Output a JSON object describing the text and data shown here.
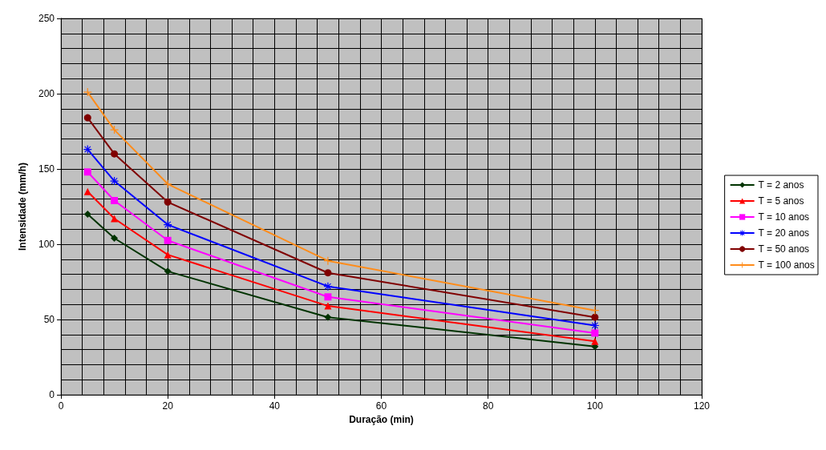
{
  "chart_data": {
    "type": "line",
    "xlabel": "Duração (min)",
    "ylabel": "Intensidade (mm/h)",
    "x": [
      5,
      10,
      20,
      50,
      100
    ],
    "xlim": [
      0,
      120
    ],
    "xticks": [
      0,
      20,
      40,
      60,
      80,
      100,
      120
    ],
    "ylim": [
      0,
      250
    ],
    "yticks": [
      0,
      50,
      100,
      150,
      200,
      250
    ],
    "grid": true,
    "legend": "right",
    "line_style": "solid",
    "series": [
      {
        "name": "T = 2 anos",
        "color": "#003300",
        "marker": "diamond",
        "values": [
          120,
          104,
          82,
          51.5,
          32
        ]
      },
      {
        "name": "T = 5 anos",
        "color": "#ff0000",
        "marker": "triangle",
        "values": [
          135,
          117,
          93,
          59,
          35.5
        ]
      },
      {
        "name": "T = 10 anos",
        "color": "#ff00ff",
        "marker": "square",
        "values": [
          148,
          129,
          102.5,
          65,
          41
        ]
      },
      {
        "name": "T = 20 anos",
        "color": "#0000ff",
        "marker": "star",
        "values": [
          163,
          142,
          113,
          72,
          46
        ]
      },
      {
        "name": "T = 50 anos",
        "color": "#800000",
        "marker": "circle",
        "values": [
          184,
          160,
          128,
          81,
          51.5
        ]
      },
      {
        "name": "T = 100 anos",
        "color": "#ff8c1a",
        "marker": "cross",
        "values": [
          201,
          176,
          140,
          89,
          56
        ]
      }
    ]
  }
}
